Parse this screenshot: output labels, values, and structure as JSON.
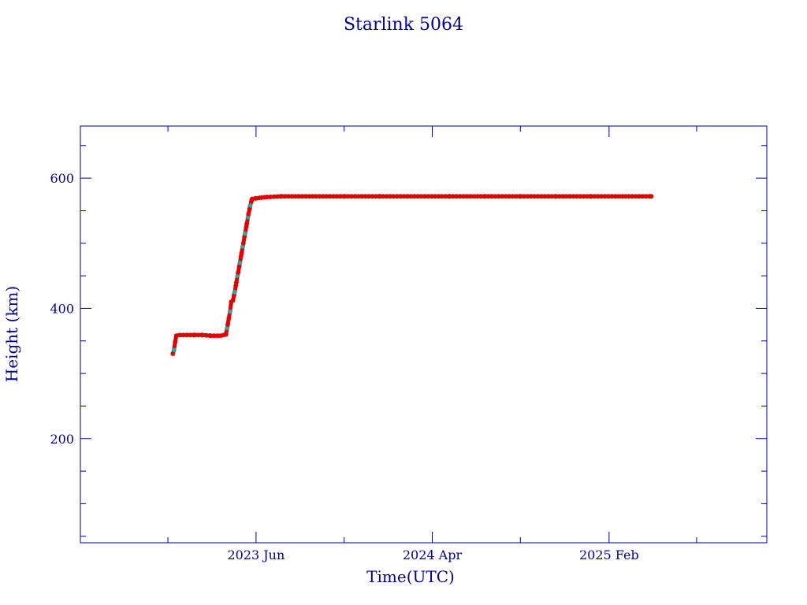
{
  "colors": {
    "axis": "#00008b",
    "text": "#00008b",
    "points": "#e00000",
    "points_secondary": "#20b2aa",
    "background": "#ffffff"
  },
  "chart_data": {
    "type": "scatter",
    "title": "Starlink 5064",
    "xlabel": "Time(UTC)",
    "ylabel": "Height (km)",
    "x_scale": "time",
    "xlim": [
      "2022-08-01",
      "2025-11-01"
    ],
    "ylim": [
      40,
      680
    ],
    "xticks": [
      {
        "date": "2023-06-01",
        "label": "2023 Jun"
      },
      {
        "date": "2024-04-01",
        "label": "2024 Apr"
      },
      {
        "date": "2025-02-01",
        "label": "2025 Feb"
      }
    ],
    "yticks": [
      200,
      400,
      600
    ],
    "grid": false,
    "legend": "none",
    "series": [
      {
        "points": [
          [
            "2023-01-08",
            330
          ],
          [
            "2023-01-10",
            336
          ],
          [
            "2023-01-12",
            348
          ],
          [
            "2023-01-14",
            358
          ],
          [
            "2023-01-20",
            359
          ],
          [
            "2023-02-01",
            359
          ],
          [
            "2023-02-15",
            359
          ],
          [
            "2023-03-01",
            359
          ],
          [
            "2023-03-15",
            358
          ],
          [
            "2023-04-01",
            358
          ],
          [
            "2023-04-10",
            360
          ],
          [
            "2023-04-13",
            375
          ],
          [
            "2023-04-15",
            385
          ],
          [
            "2023-04-17",
            395
          ],
          [
            "2023-04-19",
            410
          ],
          [
            "2023-04-22",
            412
          ],
          [
            "2023-04-25",
            425
          ],
          [
            "2023-04-28",
            440
          ],
          [
            "2023-05-01",
            455
          ],
          [
            "2023-05-04",
            470
          ],
          [
            "2023-05-07",
            485
          ],
          [
            "2023-05-10",
            500
          ],
          [
            "2023-05-13",
            515
          ],
          [
            "2023-05-16",
            530
          ],
          [
            "2023-05-19",
            545
          ],
          [
            "2023-05-22",
            558
          ],
          [
            "2023-05-25",
            568
          ],
          [
            "2023-06-01",
            569
          ],
          [
            "2023-06-10",
            570
          ],
          [
            "2023-06-20",
            571
          ],
          [
            "2023-07-15",
            572
          ],
          [
            "2023-09-01",
            572
          ],
          [
            "2023-11-01",
            572
          ],
          [
            "2024-01-01",
            572
          ],
          [
            "2024-03-01",
            572
          ],
          [
            "2024-05-01",
            572
          ],
          [
            "2024-07-01",
            572
          ],
          [
            "2024-09-01",
            572
          ],
          [
            "2024-11-01",
            572
          ],
          [
            "2025-01-01",
            572
          ],
          [
            "2025-03-01",
            572
          ],
          [
            "2025-04-15",
            572
          ]
        ]
      }
    ]
  }
}
